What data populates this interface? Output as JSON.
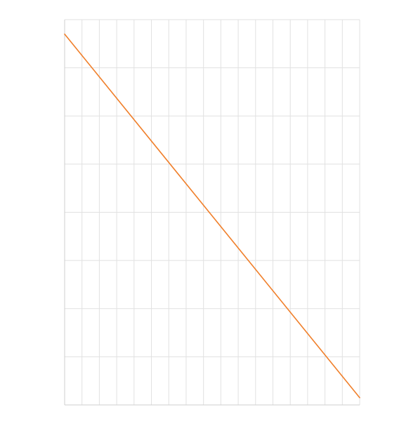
{
  "chart_data": {
    "type": "line",
    "grid": true,
    "x_divisions": 17,
    "y_divisions": 8,
    "xlim": [
      0,
      17
    ],
    "ylim": [
      0,
      8
    ],
    "series": [
      {
        "x": [
          0,
          17
        ],
        "values": [
          7.7,
          0.15
        ]
      }
    ],
    "colors": {
      "line": "#f07f2a",
      "grid": "#e1e1e1",
      "axis": "#cfcfcf",
      "background": "#ffffff"
    }
  }
}
